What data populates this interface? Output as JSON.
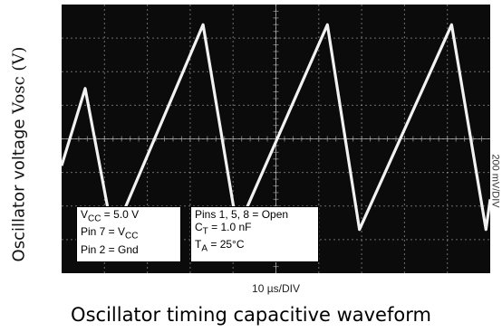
{
  "chart_data": {
    "type": "line",
    "title": "Oscillator timing capacitive waveform",
    "ylabel_main": "Oscillator voltage",
    "ylabel_sym": "Vosc (V)",
    "xscale": "10 µs/DIV",
    "yscale": "200 mV/DIV",
    "grid": true,
    "divisions": {
      "x": 10,
      "y": 8
    },
    "series": [
      {
        "x": [
          0,
          0.55,
          1.2,
          3.3,
          4.1,
          6.2,
          6.95,
          9.1,
          9.9,
          10
        ],
        "y": [
          3.2,
          5.5,
          1.1,
          7.4,
          1.3,
          7.4,
          1.3,
          7.4,
          1.3,
          2.2
        ]
      }
    ],
    "annotations": {
      "left_box": [
        "V_CC = 5.0 V",
        "Pin 7 = V_CC",
        "Pin 2 = Gnd"
      ],
      "right_box": [
        "Pins 1, 5, 8 = Open",
        "C_T = 1.0 nF",
        "T_A = 25°C"
      ]
    }
  },
  "colors": {
    "screen": "#0b0b0b",
    "trace": "#f2f2f2",
    "grid": "#bdbdbd"
  }
}
